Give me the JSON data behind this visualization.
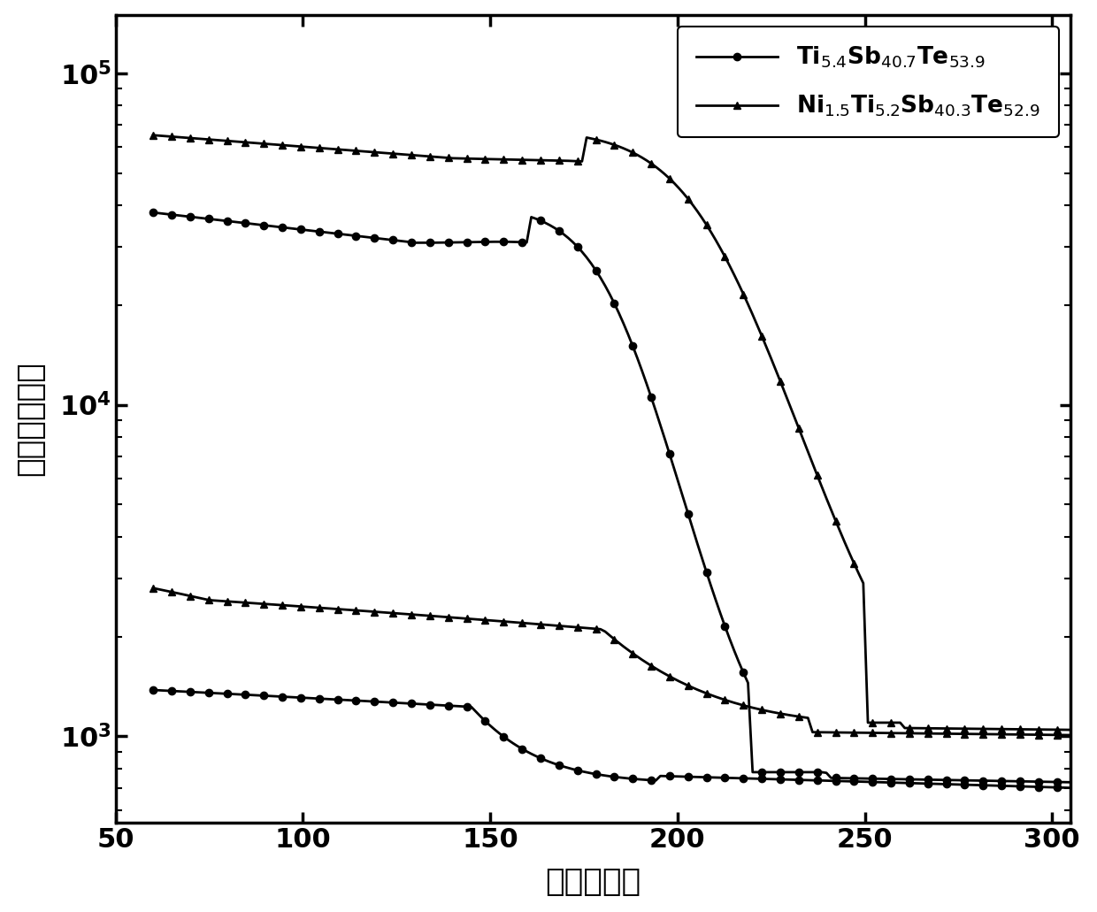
{
  "xlabel": "温度（度）",
  "ylabel": "电阱（欧姆）",
  "xlim": [
    55,
    305
  ],
  "ylim_log": [
    550,
    150000
  ],
  "xticks": [
    50,
    100,
    150,
    200,
    250,
    300
  ],
  "series1_label": "Ti$_{5.4}$Sb$_{40.7}$Te$_{53.9}$",
  "series2_label": "Ni$_{1.5}$Ti$_{5.2}$Sb$_{40.3}$Te$_{52.9}$",
  "color": "#000000",
  "linewidth": 2.0,
  "markersize": 6,
  "markevery": 4
}
